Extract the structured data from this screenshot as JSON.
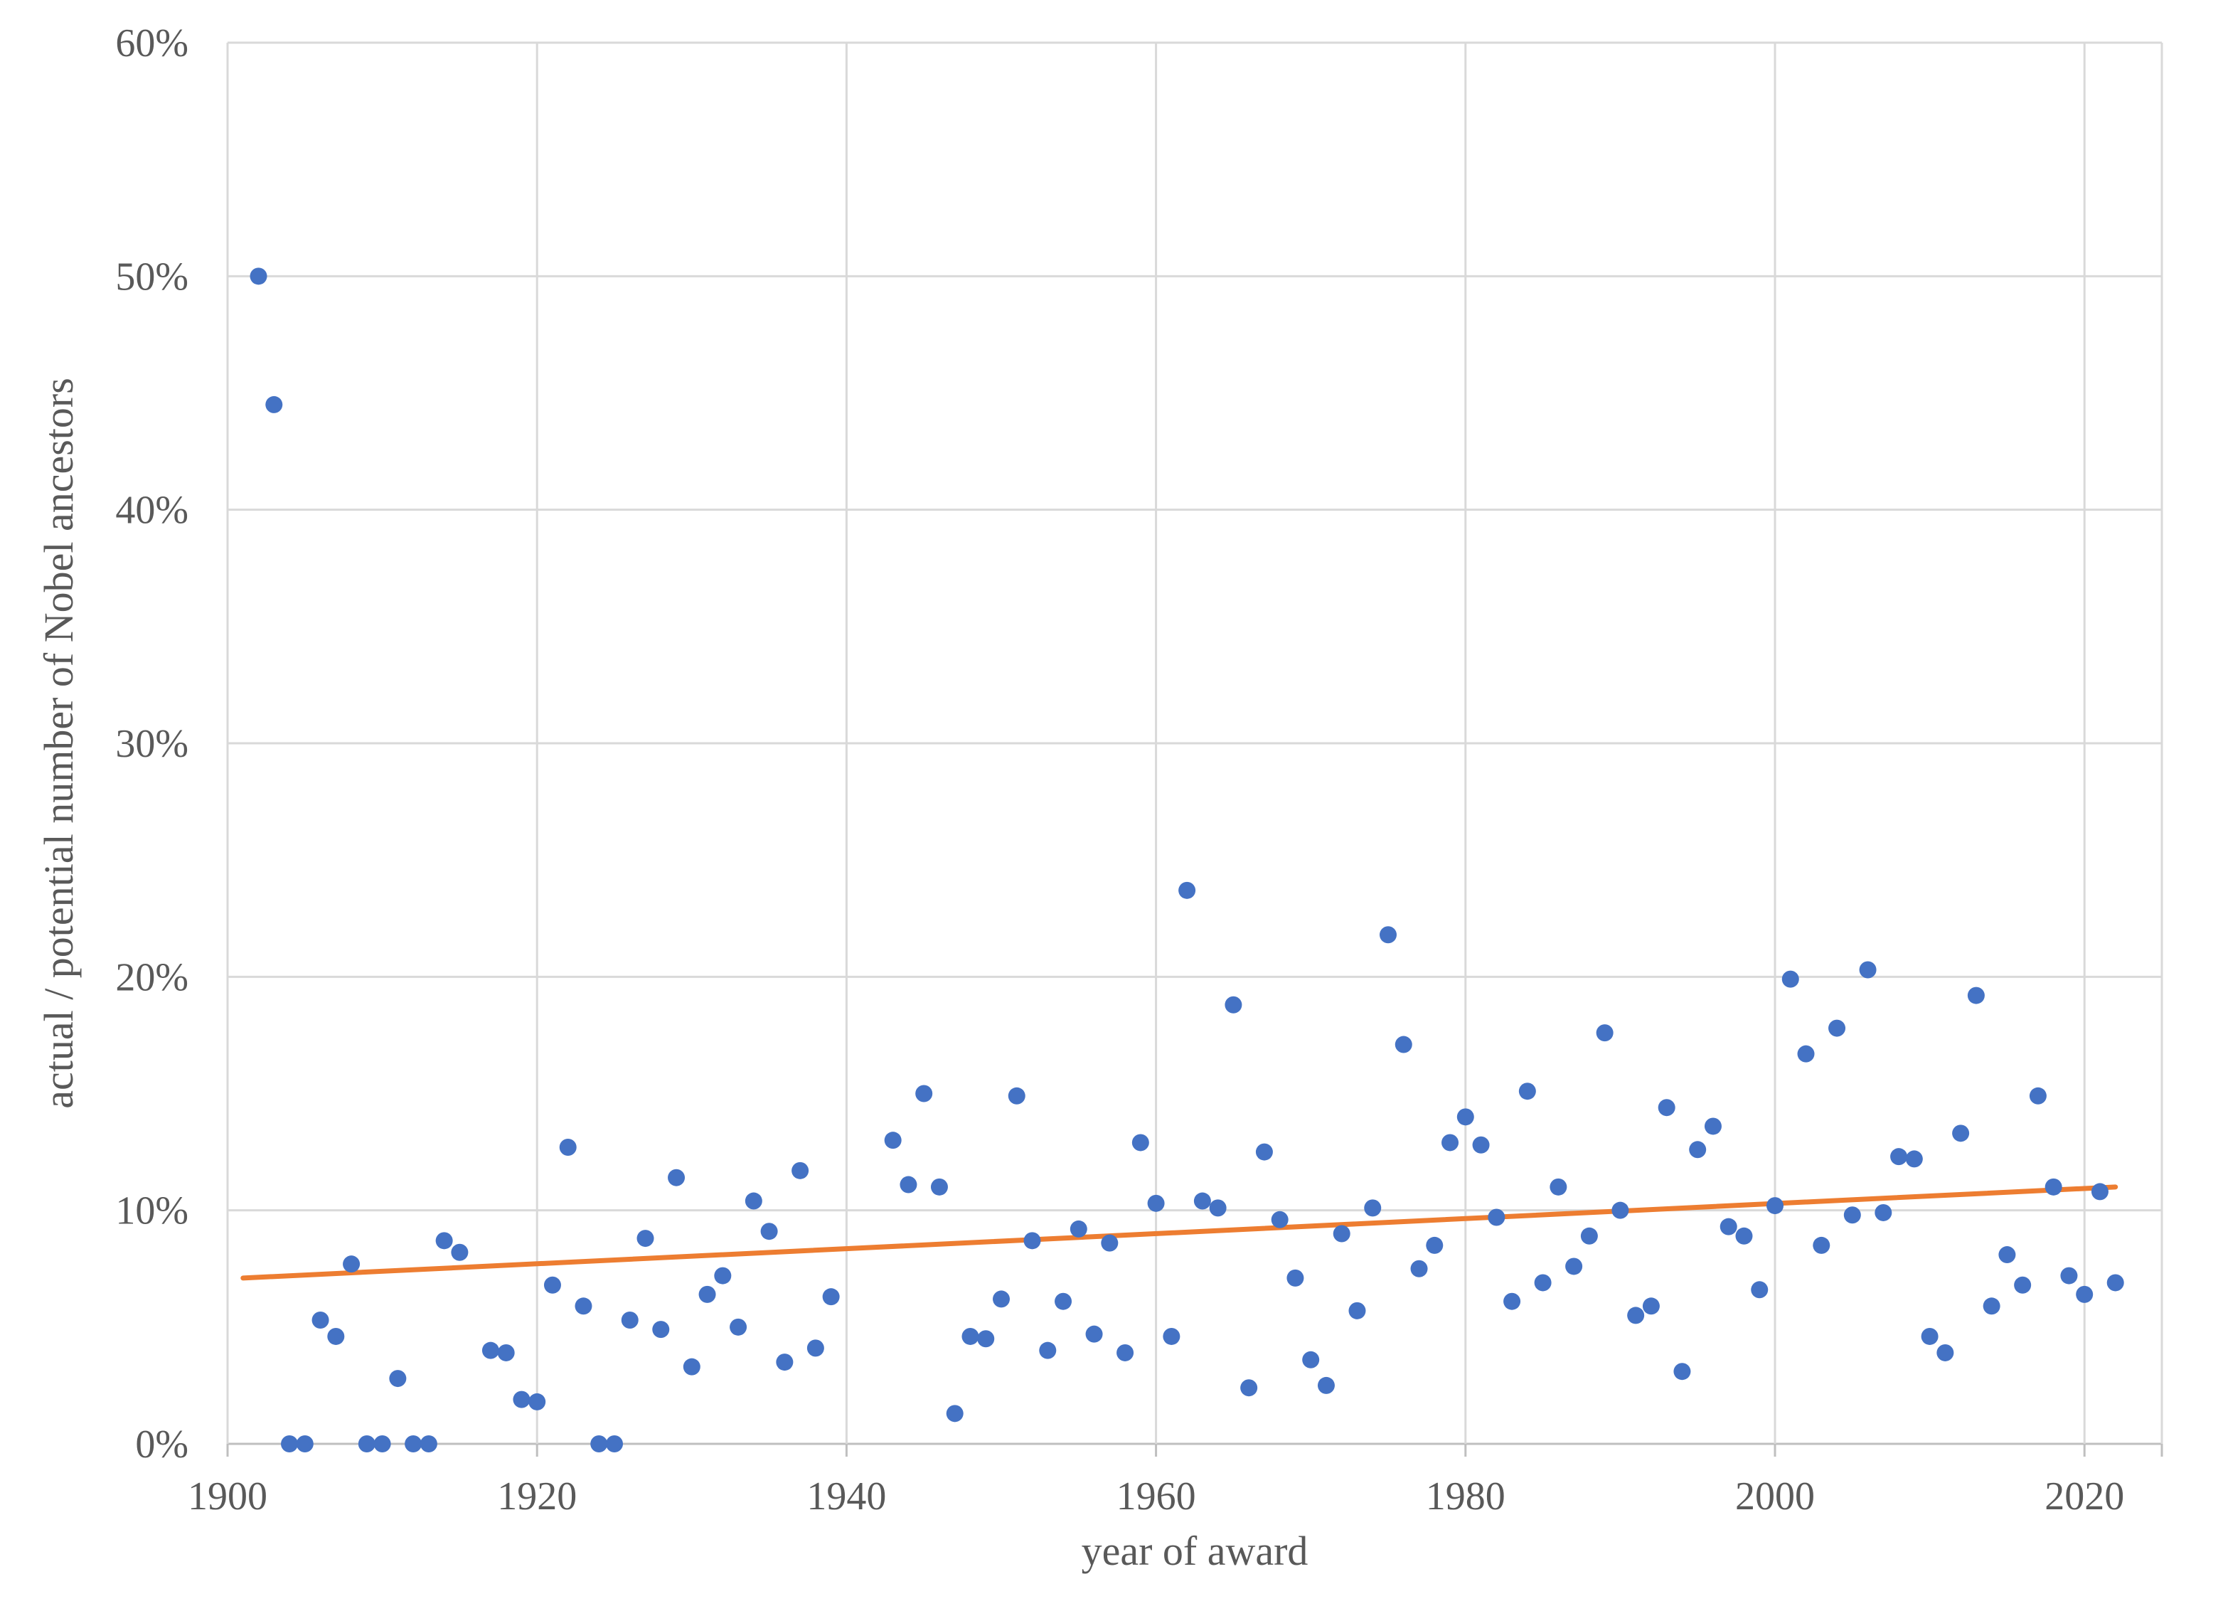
{
  "chart_data": {
    "type": "scatter",
    "title": "",
    "xlabel": "year of award",
    "ylabel": "actual / potential number of Nobel ancestors",
    "xlim": [
      1900,
      2025
    ],
    "ylim": [
      0,
      0.6
    ],
    "x_ticks": [
      1900,
      1920,
      1940,
      1960,
      1980,
      2000,
      2020
    ],
    "x_tick_labels": [
      "1900",
      "1920",
      "1940",
      "1960",
      "1980",
      "2000",
      "2020"
    ],
    "y_ticks": [
      0,
      0.1,
      0.2,
      0.3,
      0.4,
      0.5,
      0.6
    ],
    "y_tick_labels": [
      "0%",
      "10%",
      "20%",
      "30%",
      "40%",
      "50%",
      "60%"
    ],
    "grid": true,
    "legend": "none",
    "colors": {
      "points": "#4472c4",
      "trendline": "#ed7d31"
    },
    "trendline": {
      "type": "linear",
      "x": [
        1901,
        2022
      ],
      "y": [
        0.071,
        0.11
      ]
    },
    "series": [
      {
        "x": [
          1902,
          1903,
          1904,
          1905,
          1906,
          1907,
          1908,
          1909,
          1910,
          1911,
          1912,
          1913,
          1914,
          1915,
          1917,
          1918,
          1919,
          1920,
          1921,
          1922,
          1923,
          1924,
          1925,
          1926,
          1927,
          1928,
          1929,
          1930,
          1931,
          1932,
          1933,
          1934,
          1935,
          1936,
          1937,
          1938,
          1939,
          1943,
          1944,
          1945,
          1946,
          1947,
          1948,
          1949,
          1950,
          1951,
          1952,
          1953,
          1954,
          1955,
          1956,
          1957,
          1958,
          1959,
          1960,
          1961,
          1962,
          1963,
          1964,
          1965,
          1966,
          1967,
          1968,
          1969,
          1970,
          1971,
          1972,
          1973,
          1974,
          1975,
          1976,
          1977,
          1978,
          1979,
          1980,
          1981,
          1982,
          1983,
          1984,
          1985,
          1986,
          1987,
          1988,
          1989,
          1990,
          1991,
          1992,
          1993,
          1994,
          1995,
          1996,
          1997,
          1998,
          1999,
          2000,
          2001,
          2002,
          2003,
          2004,
          2005,
          2006,
          2007,
          2008,
          2009,
          2010,
          2011,
          2012,
          2013,
          2014,
          2015,
          2016,
          2017,
          2018,
          2019,
          2020,
          2021,
          2022
        ],
        "y": [
          0.5,
          0.445,
          0.0,
          0.0,
          0.053,
          0.046,
          0.077,
          0.0,
          0.0,
          0.028,
          0.0,
          0.0,
          0.087,
          0.082,
          0.04,
          0.039,
          0.019,
          0.018,
          0.068,
          0.127,
          0.059,
          0.0,
          0.0,
          0.053,
          0.088,
          0.049,
          0.114,
          0.033,
          0.064,
          0.072,
          0.05,
          0.104,
          0.091,
          0.035,
          0.117,
          0.041,
          0.063,
          0.13,
          0.111,
          0.15,
          0.11,
          0.013,
          0.046,
          0.045,
          0.062,
          0.149,
          0.087,
          0.04,
          0.061,
          0.092,
          0.047,
          0.086,
          0.039,
          0.129,
          0.103,
          0.046,
          0.237,
          0.104,
          0.101,
          0.188,
          0.024,
          0.125,
          0.096,
          0.071,
          0.036,
          0.025,
          0.09,
          0.057,
          0.101,
          0.218,
          0.171,
          0.075,
          0.085,
          0.129,
          0.14,
          0.128,
          0.097,
          0.061,
          0.151,
          0.069,
          0.11,
          0.076,
          0.089,
          0.176,
          0.1,
          0.055,
          0.059,
          0.144,
          0.031,
          0.126,
          0.136,
          0.093,
          0.089,
          0.066,
          0.102,
          0.199,
          0.167,
          0.085,
          0.178,
          0.098,
          0.203,
          0.099,
          0.123,
          0.122,
          0.046,
          0.039,
          0.133,
          0.192,
          0.059,
          0.081,
          0.068,
          0.149,
          0.11,
          0.072,
          0.064,
          0.108,
          0.069
        ]
      }
    ]
  }
}
